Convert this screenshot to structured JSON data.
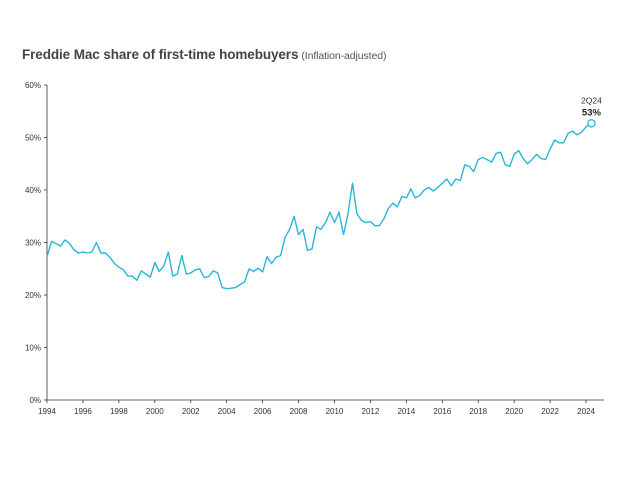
{
  "chart_data": {
    "type": "line",
    "title": "Freddie Mac share of first-time homebuyers",
    "subtitle": "(Inflation-adjusted)",
    "xlabel": "",
    "ylabel": "",
    "xlim": [
      1994,
      2025
    ],
    "ylim": [
      0,
      60
    ],
    "grid": false,
    "x_ticks": [
      1994,
      1996,
      1998,
      2000,
      2002,
      2004,
      2006,
      2008,
      2010,
      2012,
      2014,
      2016,
      2018,
      2020,
      2022,
      2024
    ],
    "x_tick_labels": [
      "1994",
      "1996",
      "1998",
      "2000",
      "2002",
      "2004",
      "2006",
      "2008",
      "2010",
      "2012",
      "2014",
      "2016",
      "2018",
      "2020",
      "2022",
      "2024"
    ],
    "y_ticks": [
      0,
      10,
      20,
      30,
      40,
      50,
      60
    ],
    "y_tick_labels": [
      "0%",
      "10%",
      "20%",
      "30%",
      "40%",
      "50%",
      "60%"
    ],
    "line_color": "#29b6d6",
    "annotation": {
      "period": "2Q24",
      "value_label": "53%",
      "x": 2024.3,
      "y": 52.7
    },
    "series": [
      {
        "name": "Share of first-time homebuyers",
        "x": [
          1994.0,
          1994.25,
          1994.5,
          1994.75,
          1995.0,
          1995.25,
          1995.5,
          1995.75,
          1996.0,
          1996.25,
          1996.5,
          1996.75,
          1997.0,
          1997.25,
          1997.5,
          1997.75,
          1998.0,
          1998.25,
          1998.5,
          1998.75,
          1999.0,
          1999.25,
          1999.5,
          1999.75,
          2000.0,
          2000.25,
          2000.5,
          2000.75,
          2001.0,
          2001.25,
          2001.5,
          2001.75,
          2002.0,
          2002.25,
          2002.5,
          2002.75,
          2003.0,
          2003.25,
          2003.5,
          2003.75,
          2004.0,
          2004.25,
          2004.5,
          2004.75,
          2005.0,
          2005.25,
          2005.5,
          2005.75,
          2006.0,
          2006.25,
          2006.5,
          2006.75,
          2007.0,
          2007.25,
          2007.5,
          2007.75,
          2008.0,
          2008.25,
          2008.5,
          2008.75,
          2009.0,
          2009.25,
          2009.5,
          2009.75,
          2010.0,
          2010.25,
          2010.5,
          2010.75,
          2011.0,
          2011.25,
          2011.5,
          2011.75,
          2012.0,
          2012.25,
          2012.5,
          2012.75,
          2013.0,
          2013.25,
          2013.5,
          2013.75,
          2014.0,
          2014.25,
          2014.5,
          2014.75,
          2015.0,
          2015.25,
          2015.5,
          2015.75,
          2016.0,
          2016.25,
          2016.5,
          2016.75,
          2017.0,
          2017.25,
          2017.5,
          2017.75,
          2018.0,
          2018.25,
          2018.5,
          2018.75,
          2019.0,
          2019.25,
          2019.5,
          2019.75,
          2020.0,
          2020.25,
          2020.5,
          2020.75,
          2021.0,
          2021.25,
          2021.5,
          2021.75,
          2022.0,
          2022.25,
          2022.5,
          2022.75,
          2023.0,
          2023.25,
          2023.5,
          2023.75,
          2024.0,
          2024.25
        ],
        "values": [
          27.3,
          30.2,
          29.8,
          29.3,
          30.5,
          29.8,
          28.6,
          28.0,
          28.2,
          28.0,
          28.2,
          30.0,
          28.0,
          28.0,
          27.2,
          26.0,
          25.3,
          24.8,
          23.6,
          23.6,
          22.8,
          24.6,
          24.0,
          23.4,
          26.2,
          24.5,
          25.5,
          28.2,
          23.6,
          24.0,
          27.5,
          24.0,
          24.2,
          24.8,
          25.0,
          23.3,
          23.5,
          24.6,
          24.2,
          21.4,
          21.2,
          21.3,
          21.4,
          22.0,
          22.5,
          25.0,
          24.5,
          25.1,
          24.4,
          27.3,
          26.0,
          27.2,
          27.5,
          31.0,
          32.5,
          35.0,
          31.5,
          32.5,
          28.5,
          28.8,
          33.0,
          32.5,
          33.8,
          35.8,
          33.8,
          35.8,
          31.5,
          35.5,
          41.3,
          35.5,
          34.2,
          33.8,
          34.0,
          33.2,
          33.2,
          34.5,
          36.5,
          37.5,
          36.8,
          38.8,
          38.5,
          40.2,
          38.5,
          39.0,
          40.0,
          40.5,
          39.8,
          40.5,
          41.3,
          42.1,
          40.8,
          42.1,
          41.8,
          44.8,
          44.5,
          43.5,
          45.8,
          46.2,
          45.8,
          45.3,
          47.0,
          47.2,
          44.8,
          44.5,
          46.8,
          47.5,
          46.0,
          45.0,
          45.8,
          46.8,
          46.0,
          45.8,
          47.8,
          49.5,
          49.0,
          49.0,
          50.8,
          51.2,
          50.5,
          51.0,
          52.0,
          52.7
        ]
      }
    ]
  }
}
